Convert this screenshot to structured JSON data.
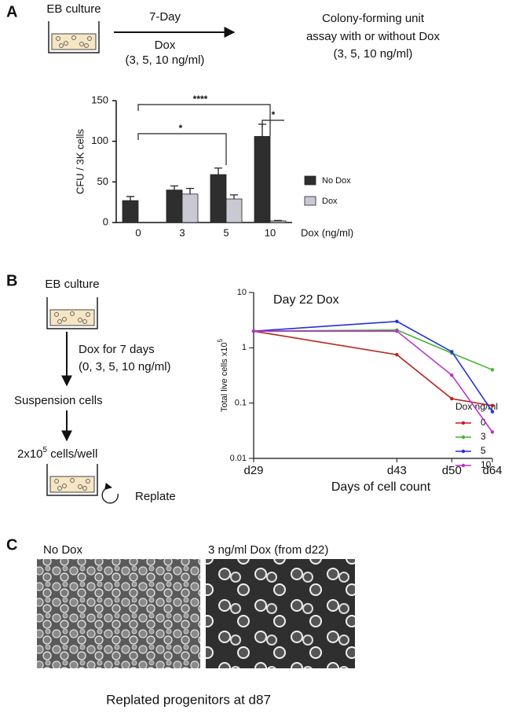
{
  "panel_a": {
    "label": "A",
    "start": "EB culture",
    "arrow_top": "7-Day",
    "arrow_bottom": "Dox",
    "arrow_sub": "(3, 5, 10 ng/ml)",
    "end_lines": [
      "Colony-forming unit",
      "assay with or without Dox",
      "(3, 5, 10 ng/ml)"
    ]
  },
  "panel_b": {
    "label": "B",
    "start": "EB culture",
    "step1": "Dox for 7 days",
    "step1_sub": "(0, 3, 5, 10 ng/ml)",
    "step2": "Suspension cells",
    "step3": "2x10",
    "step3_sup": "5",
    "step3_end": " cells/well",
    "replate": "Replate"
  },
  "panel_c": {
    "label": "C",
    "left_title": "No Dox",
    "right_title": "3 ng/ml Dox (from d22)",
    "caption": "Replated progenitors at d87"
  },
  "chart_data": [
    {
      "type": "bar",
      "ylabel": "CFU / 3K cells",
      "xlabel": "Dox (ng/ml)",
      "categories": [
        "0",
        "3",
        "5",
        "10"
      ],
      "series": [
        {
          "name": "No Dox",
          "color": "#2e2e2e",
          "values": [
            27,
            40,
            59,
            106
          ],
          "errors": [
            5,
            5,
            8,
            15
          ]
        },
        {
          "name": "Dox",
          "color": "#c9c9d3",
          "values": [
            null,
            35,
            29,
            2
          ],
          "errors": [
            null,
            7,
            5,
            0.5
          ]
        }
      ],
      "ylim": [
        0,
        150
      ],
      "yticks": [
        0,
        50,
        100,
        150
      ],
      "annotations": [
        {
          "text": "****"
        },
        {
          "text": "*"
        },
        {
          "text": "*"
        }
      ]
    },
    {
      "type": "line",
      "title": "Day 22 Dox",
      "ylabel": "Total live cells x10",
      "ylabel_sup": "5",
      "xlabel": "Days of cell count",
      "categories": [
        "d29",
        "d43",
        "d50",
        "d64"
      ],
      "legend_title": "Dox ng/ml",
      "log_scale": true,
      "series": [
        {
          "name": "0",
          "color": "#b5251e",
          "values": [
            2,
            0.75,
            0.12,
            0.09
          ]
        },
        {
          "name": "3",
          "color": "#46b52c",
          "values": [
            2,
            2.1,
            0.8,
            0.4
          ]
        },
        {
          "name": "5",
          "color": "#2330dc",
          "values": [
            2,
            3,
            0.85,
            0.07
          ]
        },
        {
          "name": "10",
          "color": "#b933c9",
          "values": [
            2,
            2,
            0.32,
            0.03
          ]
        }
      ],
      "ylim": [
        0.01,
        10
      ],
      "yticks": [
        0.01,
        0.1,
        1,
        10
      ]
    }
  ]
}
